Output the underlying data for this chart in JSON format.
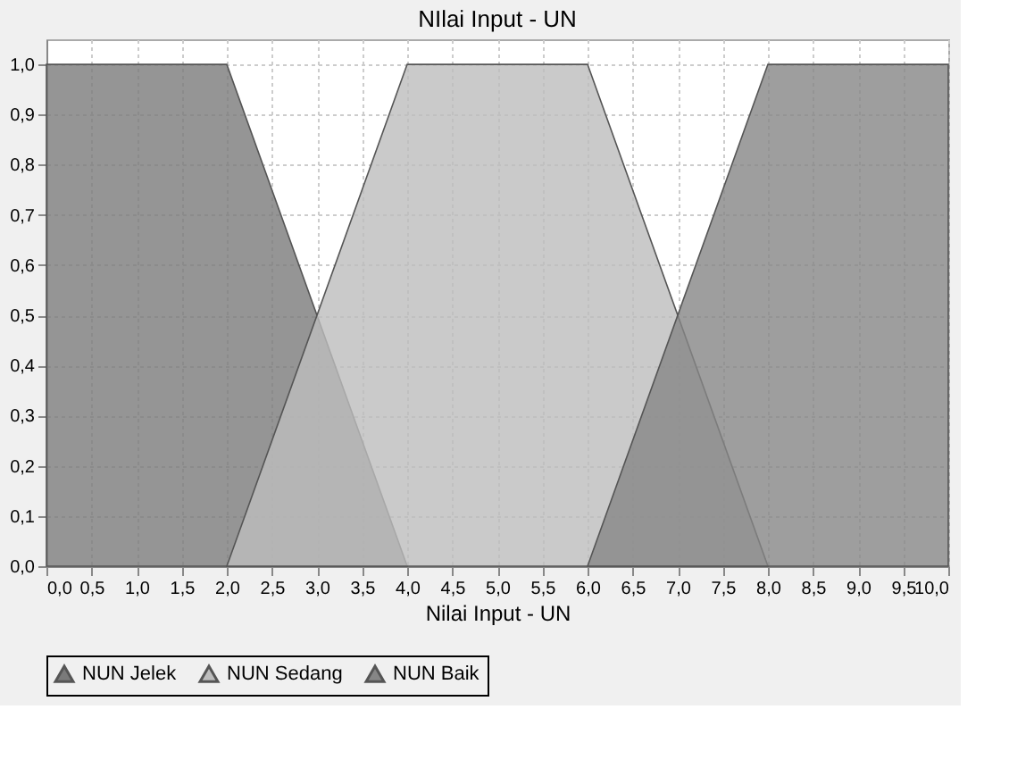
{
  "chart_data": {
    "type": "area",
    "title": "NIlai Input - UN",
    "xlabel": "Nilai Input - UN",
    "series": [
      {
        "name": "NUN Jelek",
        "color": "#7a7a7a",
        "x": [
          0,
          2,
          4
        ],
        "values": [
          1,
          1,
          0
        ]
      },
      {
        "name": "NUN Sedang",
        "color": "#bdbdbd",
        "x": [
          2,
          4,
          6,
          8
        ],
        "values": [
          0,
          1,
          1,
          0
        ]
      },
      {
        "name": "NUN Baik",
        "color": "#868686",
        "x": [
          6,
          8,
          10
        ],
        "values": [
          0,
          1,
          1
        ]
      }
    ],
    "xlim": [
      0,
      10
    ],
    "ylim": [
      0,
      1.05
    ],
    "xticks": [
      {
        "value": 0,
        "label": "0,0"
      },
      {
        "value": 0.5,
        "label": "0,5"
      },
      {
        "value": 1,
        "label": "1,0"
      },
      {
        "value": 1.5,
        "label": "1,5"
      },
      {
        "value": 2,
        "label": "2,0"
      },
      {
        "value": 2.5,
        "label": "2,5"
      },
      {
        "value": 3,
        "label": "3,0"
      },
      {
        "value": 3.5,
        "label": "3,5"
      },
      {
        "value": 4,
        "label": "4,0"
      },
      {
        "value": 4.5,
        "label": "4,5"
      },
      {
        "value": 5,
        "label": "5,0"
      },
      {
        "value": 5.5,
        "label": "5,5"
      },
      {
        "value": 6,
        "label": "6,0"
      },
      {
        "value": 6.5,
        "label": "6,5"
      },
      {
        "value": 7,
        "label": "7,0"
      },
      {
        "value": 7.5,
        "label": "7,5"
      },
      {
        "value": 8,
        "label": "8,0"
      },
      {
        "value": 8.5,
        "label": "8,5"
      },
      {
        "value": 9,
        "label": "9,0"
      },
      {
        "value": 9.5,
        "label": "9,5"
      },
      {
        "value": 10,
        "label": "10,0"
      }
    ],
    "yticks": [
      {
        "value": 0,
        "label": "0,0"
      },
      {
        "value": 0.1,
        "label": "0,1"
      },
      {
        "value": 0.2,
        "label": "0,2"
      },
      {
        "value": 0.3,
        "label": "0,3"
      },
      {
        "value": 0.4,
        "label": "0,4"
      },
      {
        "value": 0.5,
        "label": "0,5"
      },
      {
        "value": 0.6,
        "label": "0,6"
      },
      {
        "value": 0.7,
        "label": "0,7"
      },
      {
        "value": 0.8,
        "label": "0,8"
      },
      {
        "value": 0.9,
        "label": "0,9"
      },
      {
        "value": 1,
        "label": "1,0"
      }
    ],
    "grid": true,
    "legend": "bottom"
  }
}
